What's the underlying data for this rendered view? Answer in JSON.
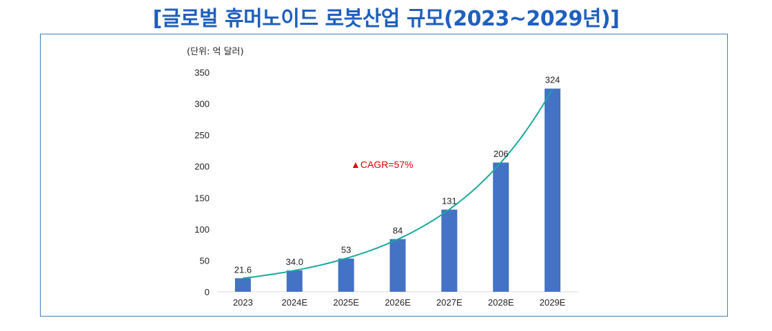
{
  "chart_data": {
    "type": "bar",
    "title": "[글로벌  휴머노이드  로봇산업  규모(2023~2029년)]",
    "unit_label": "(단위: 억 달러)",
    "categories": [
      "2023",
      "2024E",
      "2025E",
      "2026E",
      "2027E",
      "2028E",
      "2029E"
    ],
    "values": [
      21.6,
      34.0,
      53,
      84,
      131,
      206,
      324
    ],
    "value_labels": [
      "21.6",
      "34.0",
      "53",
      "84",
      "131",
      "206",
      "324"
    ],
    "ylim": [
      0,
      350
    ],
    "yticks": [
      0,
      50,
      100,
      150,
      200,
      250,
      300,
      350
    ],
    "trendline": "exponential",
    "annotation": "▲CAGR=57%",
    "bar_color": "#4472c4",
    "trend_color": "#16a99a",
    "annotation_color": "#e00000",
    "xlabel": "",
    "ylabel": ""
  }
}
